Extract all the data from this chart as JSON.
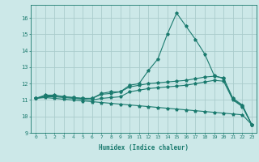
{
  "xlabel": "Humidex (Indice chaleur)",
  "background_color": "#cce8e8",
  "grid_color": "#aacccc",
  "line_color": "#1a7a6e",
  "xlim": [
    -0.5,
    23.5
  ],
  "ylim": [
    9,
    16.8
  ],
  "yticks": [
    9,
    10,
    11,
    12,
    13,
    14,
    15,
    16
  ],
  "xticks": [
    0,
    1,
    2,
    3,
    4,
    5,
    6,
    7,
    8,
    9,
    10,
    11,
    12,
    13,
    14,
    15,
    16,
    17,
    18,
    19,
    20,
    21,
    22,
    23
  ],
  "series": [
    [
      11.1,
      11.3,
      11.3,
      11.2,
      11.15,
      11.1,
      11.1,
      11.4,
      11.5,
      11.5,
      11.9,
      12.0,
      12.8,
      13.5,
      15.0,
      16.3,
      15.5,
      14.7,
      13.8,
      12.5,
      12.3,
      11.1,
      10.7,
      9.5
    ],
    [
      11.1,
      11.25,
      11.25,
      11.2,
      11.15,
      11.1,
      11.1,
      11.35,
      11.4,
      11.5,
      11.8,
      11.9,
      12.0,
      12.05,
      12.1,
      12.15,
      12.2,
      12.3,
      12.4,
      12.45,
      12.35,
      11.05,
      10.65,
      9.5
    ],
    [
      11.1,
      11.2,
      11.2,
      11.15,
      11.1,
      11.05,
      11.0,
      11.1,
      11.15,
      11.2,
      11.5,
      11.6,
      11.7,
      11.75,
      11.8,
      11.85,
      11.9,
      12.0,
      12.1,
      12.2,
      12.15,
      11.0,
      10.6,
      9.5
    ],
    [
      11.1,
      11.15,
      11.1,
      11.05,
      11.0,
      10.95,
      10.9,
      10.85,
      10.8,
      10.75,
      10.7,
      10.65,
      10.6,
      10.55,
      10.5,
      10.45,
      10.4,
      10.35,
      10.3,
      10.25,
      10.2,
      10.15,
      10.1,
      9.5
    ]
  ]
}
